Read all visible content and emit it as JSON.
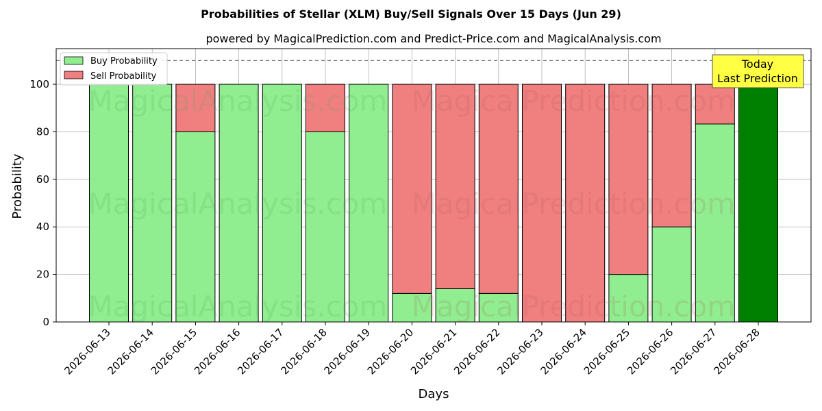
{
  "chart_data": {
    "type": "bar",
    "stacked": true,
    "title": "Probabilities of Stellar (XLM) Buy/Sell Signals Over 15 Days (Jun 29)",
    "subtitle": "powered by MagicalPrediction.com and Predict-Price.com and MagicalAnalysis.com",
    "xlabel": "Days",
    "ylabel": "Probability",
    "ylim": [
      0,
      115
    ],
    "yticks": [
      "0",
      "20",
      "40",
      "60",
      "80",
      "100"
    ],
    "grid": true,
    "legend_position": "top-left",
    "reference_line": 110,
    "categories": [
      "2026-06-13",
      "2026-06-14",
      "2026-06-15",
      "2026-06-16",
      "2026-06-17",
      "2026-06-18",
      "2026-06-19",
      "2026-06-20",
      "2026-06-21",
      "2026-06-22",
      "2026-06-23",
      "2026-06-24",
      "2026-06-25",
      "2026-06-26",
      "2026-06-27",
      "2026-06-28"
    ],
    "series": [
      {
        "name": "Buy Probability",
        "color": "#90ee90",
        "values": [
          100,
          100,
          80,
          100,
          100,
          80,
          100,
          12,
          14,
          12,
          0,
          0,
          20,
          40,
          83.3,
          100
        ]
      },
      {
        "name": "Sell Probability",
        "color": "#f08080",
        "values": [
          0,
          0,
          20,
          0,
          0,
          20,
          0,
          88,
          86,
          88,
          100,
          100,
          80,
          60,
          16.7,
          0
        ]
      }
    ],
    "highlight": {
      "index": 15,
      "color": "#008000"
    },
    "annotation": {
      "line1": "Today",
      "line2": "Last Prediction",
      "color": "#ffff44"
    },
    "watermarks": [
      "MagicalAnalysis.com",
      "MagicalPrediction.com"
    ]
  }
}
